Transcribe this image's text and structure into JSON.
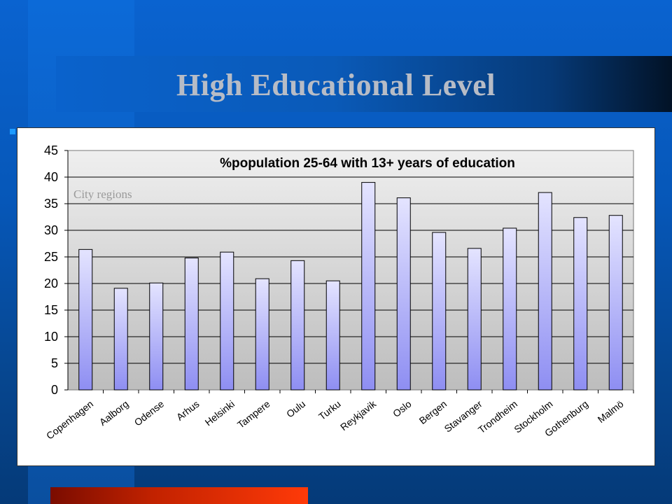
{
  "slide": {
    "title": "High Educational Level"
  },
  "chart_data": {
    "type": "bar",
    "title": "%population 25-64 with 13+ years of education",
    "annotation": "City regions",
    "categories": [
      "Copenhagen",
      "Aalborg",
      "Odense",
      "Arhus",
      "Helsinki",
      "Tampere",
      "Oulu",
      "Turku",
      "Reykjavik",
      "Oslo",
      "Bergen",
      "Stavanger",
      "Trondheim",
      "Stockholm",
      "Gothenburg",
      "Malmö"
    ],
    "values": [
      26.4,
      19.1,
      20.1,
      24.8,
      25.9,
      20.9,
      24.3,
      20.5,
      39.0,
      36.1,
      29.6,
      26.6,
      30.4,
      37.1,
      32.4,
      32.8
    ],
    "ylim": [
      0,
      45
    ],
    "yticks": [
      0,
      5,
      10,
      15,
      20,
      25,
      30,
      35,
      40,
      45
    ],
    "grid": true,
    "xlabel": "",
    "ylabel": "",
    "colors": {
      "bar_top": "#e4e4ff",
      "bar_bottom": "#8e8ef2",
      "bar_stroke": "#000000",
      "plot_top": "#efefef",
      "plot_bottom": "#bdbdbd"
    }
  }
}
